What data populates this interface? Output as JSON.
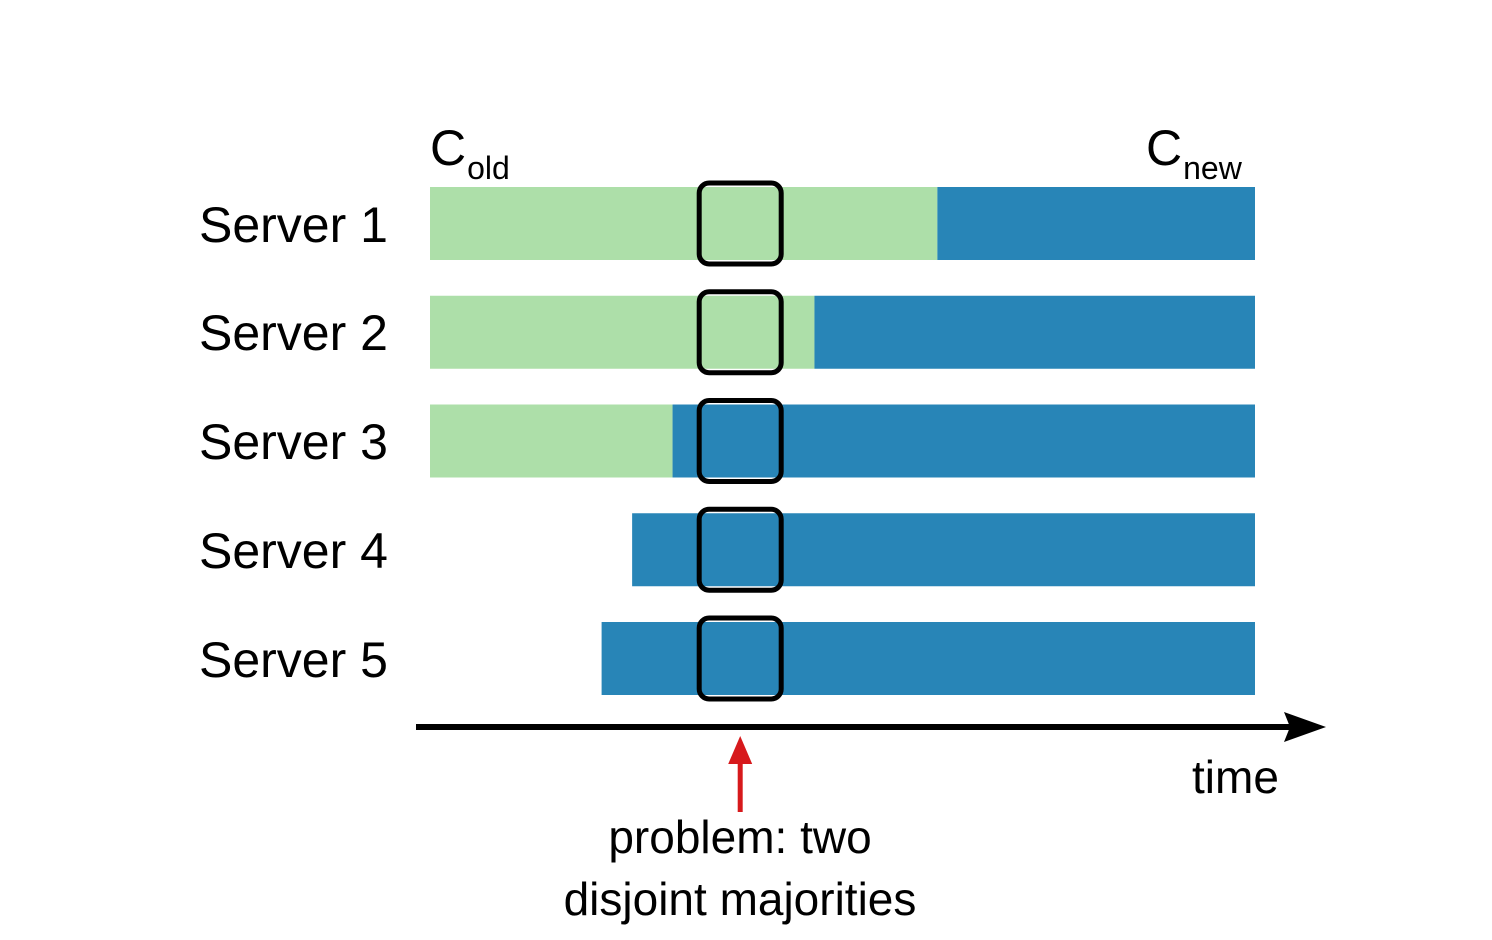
{
  "config_labels": {
    "old_main": "C",
    "old_sub": "old",
    "new_main": "C",
    "new_sub": "new"
  },
  "servers": [
    {
      "label": "Server 1",
      "start": 0,
      "switch": 0.615
    },
    {
      "label": "Server 2",
      "start": 0,
      "switch": 0.466
    },
    {
      "label": "Server 3",
      "start": 0,
      "switch": 0.294
    },
    {
      "label": "Server 4",
      "start": 0.245,
      "switch": 0.245
    },
    {
      "label": "Server 5",
      "start": 0.208,
      "switch": 0.208
    }
  ],
  "highlight_time": 0.376,
  "axis_label": "time",
  "annotation": {
    "line1": "problem: two",
    "line2": "disjoint majorities"
  },
  "colors": {
    "old_config": "#addfa9",
    "new_config": "#2885b7",
    "highlight_box": "#000000",
    "annotation_arrow": "#d7191c",
    "axis": "#000000"
  }
}
